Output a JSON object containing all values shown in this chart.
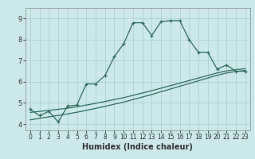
{
  "xlabel": "Humidex (Indice chaleur)",
  "bg_color": "#cce8ea",
  "grid_color": "#b0d0d3",
  "line_color": "#2e6b5e",
  "x_values": [
    0,
    1,
    2,
    3,
    4,
    5,
    6,
    7,
    8,
    9,
    10,
    11,
    12,
    13,
    14,
    15,
    16,
    17,
    18,
    19,
    20,
    21,
    22,
    23
  ],
  "main_line": [
    4.7,
    4.4,
    4.6,
    4.1,
    4.85,
    4.9,
    5.9,
    5.9,
    6.3,
    7.2,
    7.8,
    8.8,
    8.8,
    8.2,
    8.85,
    8.9,
    8.9,
    8.0,
    7.4,
    7.4,
    6.6,
    6.8,
    6.5,
    6.5
  ],
  "trend_line1": [
    4.55,
    4.6,
    4.65,
    4.7,
    4.75,
    4.82,
    4.9,
    4.98,
    5.07,
    5.16,
    5.25,
    5.36,
    5.47,
    5.58,
    5.7,
    5.82,
    5.94,
    6.06,
    6.18,
    6.3,
    6.42,
    6.52,
    6.58,
    6.62
  ],
  "trend_line2": [
    4.2,
    4.27,
    4.34,
    4.41,
    4.48,
    4.56,
    4.65,
    4.74,
    4.84,
    4.94,
    5.04,
    5.16,
    5.28,
    5.4,
    5.53,
    5.66,
    5.79,
    5.92,
    6.05,
    6.18,
    6.31,
    6.42,
    6.49,
    6.54
  ],
  "ylim": [
    3.7,
    9.5
  ],
  "yticks": [
    4,
    5,
    6,
    7,
    8,
    9
  ],
  "xticks": [
    0,
    1,
    2,
    3,
    4,
    5,
    6,
    7,
    8,
    9,
    10,
    11,
    12,
    13,
    14,
    15,
    16,
    17,
    18,
    19,
    20,
    21,
    22,
    23
  ],
  "xlabel_fontsize": 7,
  "tick_fontsize": 5.5
}
